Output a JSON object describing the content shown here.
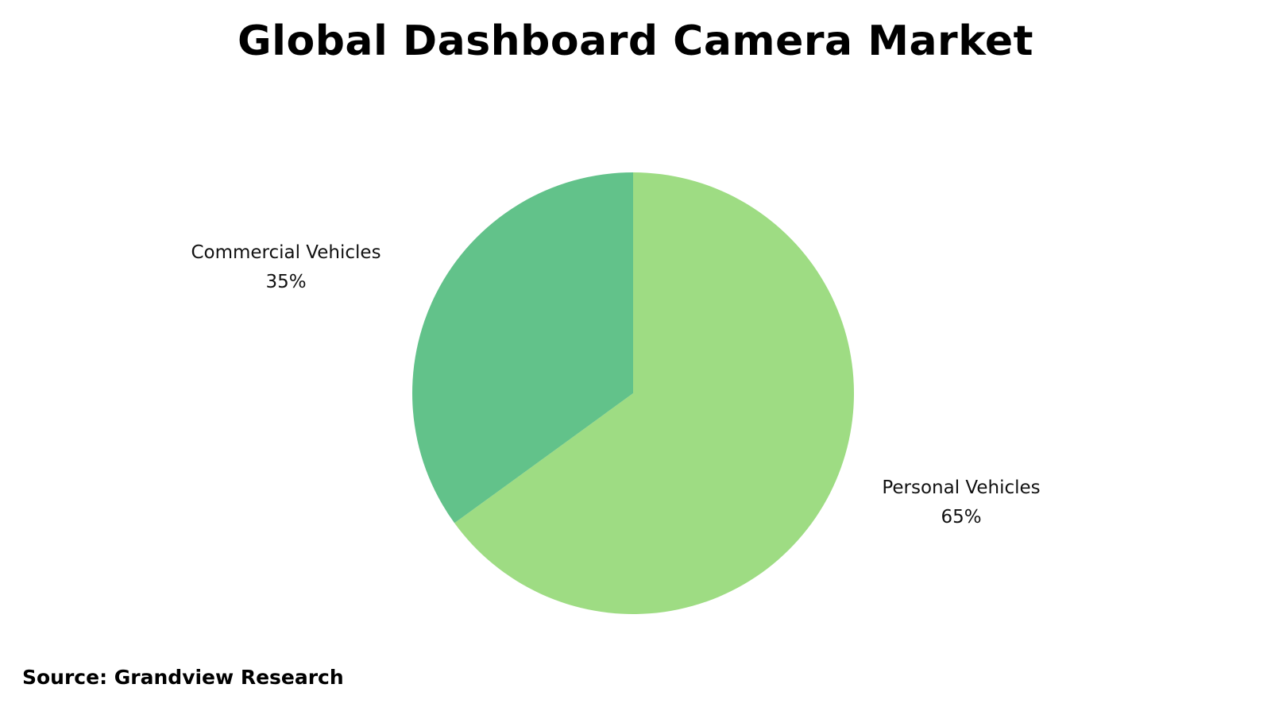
{
  "chart_data": {
    "type": "pie",
    "title": "Global Dashboard Camera Market",
    "slices": [
      {
        "label": "Personal Vehicles",
        "value": 65,
        "value_label": "65%",
        "color": "#9edc83"
      },
      {
        "label": "Commercial Vehicles",
        "value": 35,
        "value_label": "35%",
        "color": "#62c28a"
      }
    ]
  },
  "footer": {
    "source": "Source: Grandview Research"
  }
}
